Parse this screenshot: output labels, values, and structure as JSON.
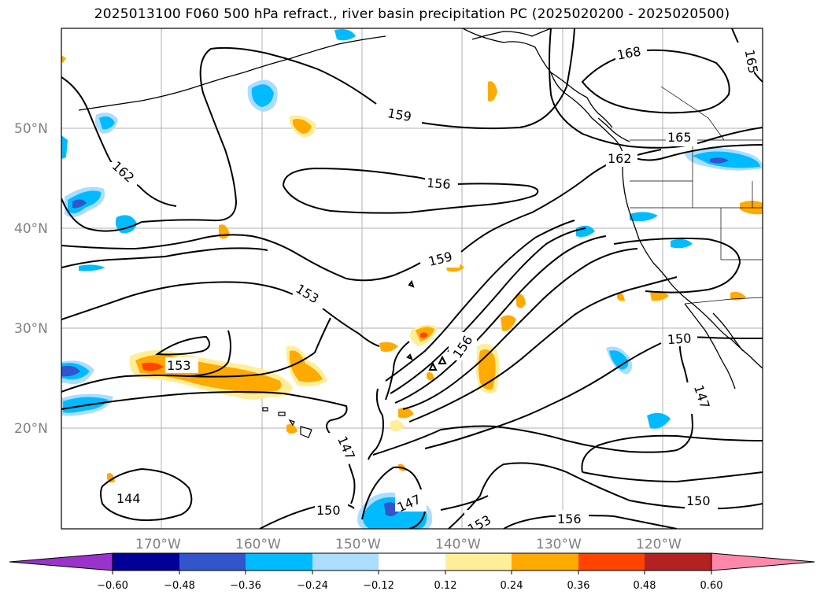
{
  "title": "2025013100 F060 500 hPa refract., river basin precipitation PC (2025020200 - 2025020500)",
  "map": {
    "lat_labels": [
      "50°N",
      "40°N",
      "30°N",
      "20°N"
    ],
    "lon_labels": [
      "170°W",
      "160°W",
      "150°W",
      "140°W",
      "130°W",
      "120°W"
    ],
    "label_color": "#808080",
    "gridlines": true
  },
  "contour_labels": [
    "168",
    "165",
    "159",
    "162",
    "156",
    "165",
    "162",
    "159",
    "153",
    "156",
    "153",
    "150",
    "147",
    "147",
    "150",
    "147",
    "153",
    "156",
    "150",
    "144"
  ],
  "colorbar": {
    "ticks": [
      "−0.60",
      "−0.48",
      "−0.36",
      "−0.24",
      "−0.12",
      "0.12",
      "0.24",
      "0.36",
      "0.48",
      "0.60"
    ],
    "colors": [
      "#9933cc",
      "#000099",
      "#3355cc",
      "#00bbff",
      "#aaddff",
      "#ffffff",
      "#ffee99",
      "#ffaa00",
      "#ff4400",
      "#b22222",
      "#ff88aa"
    ],
    "extend": "both"
  }
}
